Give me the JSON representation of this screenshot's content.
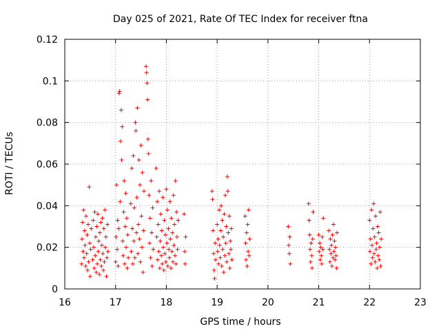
{
  "chart_data": {
    "type": "scatter",
    "title": "Day 025 of 2021, Rate Of TEC Index for receiver ftna",
    "xlabel": "GPS time / hours",
    "ylabel": "ROTI / TECUs",
    "xlim": [
      16,
      23
    ],
    "ylim": [
      0,
      0.12
    ],
    "xticks": [
      16,
      17,
      18,
      19,
      20,
      21,
      22,
      23
    ],
    "xtick_labels": [
      "16",
      "17",
      "18",
      "19",
      "20",
      "21",
      "22",
      "23"
    ],
    "yticks": [
      0,
      0.02,
      0.04,
      0.06,
      0.08,
      0.1,
      0.12
    ],
    "ytick_labels": [
      "0",
      "0.02",
      "0.04",
      "0.06",
      "0.08",
      "0.1",
      "0.12"
    ],
    "grid": true,
    "marker": "+",
    "marker_color": "#ff0000",
    "series": [
      {
        "name": "ROTI",
        "points": [
          [
            16.33,
            0.012
          ],
          [
            16.34,
            0.024
          ],
          [
            16.35,
            0.032
          ],
          [
            16.36,
            0.018
          ],
          [
            16.37,
            0.038
          ],
          [
            16.38,
            0.015
          ],
          [
            16.39,
            0.028
          ],
          [
            16.4,
            0.021
          ],
          [
            16.41,
            0.011
          ],
          [
            16.42,
            0.035
          ],
          [
            16.43,
            0.017
          ],
          [
            16.44,
            0.026
          ],
          [
            16.45,
            0.009
          ],
          [
            16.46,
            0.031
          ],
          [
            16.47,
            0.013
          ],
          [
            16.48,
            0.049
          ],
          [
            16.49,
            0.022
          ],
          [
            16.5,
            0.006
          ],
          [
            16.51,
            0.019
          ],
          [
            16.52,
            0.029
          ],
          [
            16.55,
            0.014
          ],
          [
            16.56,
            0.033
          ],
          [
            16.57,
            0.02
          ],
          [
            16.58,
            0.01
          ],
          [
            16.59,
            0.037
          ],
          [
            16.6,
            0.016
          ],
          [
            16.61,
            0.025
          ],
          [
            16.62,
            0.008
          ],
          [
            16.63,
            0.03
          ],
          [
            16.64,
            0.012
          ],
          [
            16.65,
            0.036
          ],
          [
            16.66,
            0.018
          ],
          [
            16.67,
            0.023
          ],
          [
            16.68,
            0.007
          ],
          [
            16.69,
            0.027
          ],
          [
            16.7,
            0.014
          ],
          [
            16.71,
            0.032
          ],
          [
            16.72,
            0.011
          ],
          [
            16.73,
            0.021
          ],
          [
            16.74,
            0.034
          ],
          [
            16.75,
            0.017
          ],
          [
            16.76,
            0.009
          ],
          [
            16.77,
            0.029
          ],
          [
            16.78,
            0.013
          ],
          [
            16.79,
            0.038
          ],
          [
            16.8,
            0.02
          ],
          [
            16.81,
            0.025
          ],
          [
            16.82,
            0.006
          ],
          [
            16.83,
            0.015
          ],
          [
            16.84,
            0.031
          ],
          [
            16.85,
            0.018
          ],
          [
            17.0,
            0.013
          ],
          [
            17.01,
            0.025
          ],
          [
            17.02,
            0.05
          ],
          [
            17.03,
            0.019
          ],
          [
            17.04,
            0.033
          ],
          [
            17.05,
            0.011
          ],
          [
            17.06,
            0.029
          ],
          [
            17.07,
            0.094
          ],
          [
            17.08,
            0.095
          ],
          [
            17.09,
            0.042
          ],
          [
            17.1,
            0.071
          ],
          [
            17.11,
            0.086
          ],
          [
            17.12,
            0.062
          ],
          [
            17.13,
            0.078
          ],
          [
            17.14,
            0.023
          ],
          [
            17.15,
            0.016
          ],
          [
            17.16,
            0.037
          ],
          [
            17.17,
            0.052
          ],
          [
            17.18,
            0.012
          ],
          [
            17.19,
            0.03
          ],
          [
            17.2,
            0.046
          ],
          [
            17.21,
            0.02
          ],
          [
            17.22,
            0.034
          ],
          [
            17.23,
            0.01
          ],
          [
            17.24,
            0.026
          ],
          [
            17.25,
            0.015
          ],
          [
            17.3,
            0.041
          ],
          [
            17.31,
            0.018
          ],
          [
            17.32,
            0.058
          ],
          [
            17.33,
            0.029
          ],
          [
            17.34,
            0.012
          ],
          [
            17.35,
            0.064
          ],
          [
            17.36,
            0.023
          ],
          [
            17.37,
            0.039
          ],
          [
            17.38,
            0.015
          ],
          [
            17.39,
            0.08
          ],
          [
            17.4,
            0.076
          ],
          [
            17.41,
            0.027
          ],
          [
            17.42,
            0.044
          ],
          [
            17.43,
            0.087
          ],
          [
            17.44,
            0.017
          ],
          [
            17.45,
            0.031
          ],
          [
            17.46,
            0.062
          ],
          [
            17.47,
            0.024
          ],
          [
            17.48,
            0.05
          ],
          [
            17.49,
            0.013
          ],
          [
            17.5,
            0.069
          ],
          [
            17.51,
            0.035
          ],
          [
            17.52,
            0.02
          ],
          [
            17.53,
            0.056
          ],
          [
            17.54,
            0.008
          ],
          [
            17.55,
            0.028
          ],
          [
            17.56,
            0.047
          ],
          [
            17.6,
            0.107
          ],
          [
            17.61,
            0.104
          ],
          [
            17.62,
            0.099
          ],
          [
            17.63,
            0.091
          ],
          [
            17.64,
            0.072
          ],
          [
            17.65,
            0.065
          ],
          [
            17.66,
            0.045
          ],
          [
            17.67,
            0.022
          ],
          [
            17.68,
            0.034
          ],
          [
            17.69,
            0.015
          ],
          [
            17.7,
            0.052
          ],
          [
            17.71,
            0.027
          ],
          [
            17.72,
            0.011
          ],
          [
            17.73,
            0.039
          ],
          [
            17.74,
            0.019
          ],
          [
            17.8,
            0.058
          ],
          [
            17.81,
            0.025
          ],
          [
            17.82,
            0.042
          ],
          [
            17.83,
            0.014
          ],
          [
            17.84,
            0.031
          ],
          [
            17.85,
            0.018
          ],
          [
            17.86,
            0.047
          ],
          [
            17.87,
            0.01
          ],
          [
            17.88,
            0.023
          ],
          [
            17.89,
            0.036
          ],
          [
            17.9,
            0.016
          ],
          [
            17.91,
            0.028
          ],
          [
            17.92,
            0.012
          ],
          [
            17.93,
            0.044
          ],
          [
            17.94,
            0.02
          ],
          [
            17.95,
            0.009
          ],
          [
            17.96,
            0.033
          ],
          [
            17.97,
            0.017
          ],
          [
            17.98,
            0.026
          ],
          [
            17.99,
            0.013
          ],
          [
            18.0,
            0.048
          ],
          [
            18.01,
            0.022
          ],
          [
            18.02,
            0.038
          ],
          [
            18.03,
            0.011
          ],
          [
            18.04,
            0.029
          ],
          [
            18.05,
            0.019
          ],
          [
            18.06,
            0.015
          ],
          [
            18.07,
            0.042
          ],
          [
            18.08,
            0.024
          ],
          [
            18.09,
            0.01
          ],
          [
            18.1,
            0.034
          ],
          [
            18.11,
            0.018
          ],
          [
            18.12,
            0.027
          ],
          [
            18.13,
            0.013
          ],
          [
            18.14,
            0.045
          ],
          [
            18.15,
            0.021
          ],
          [
            18.16,
            0.031
          ],
          [
            18.17,
            0.016
          ],
          [
            18.18,
            0.052
          ],
          [
            18.19,
            0.012
          ],
          [
            18.2,
            0.037
          ],
          [
            18.21,
            0.025
          ],
          [
            18.22,
            0.019
          ],
          [
            18.23,
            0.033
          ],
          [
            18.35,
            0.036
          ],
          [
            18.36,
            0.018
          ],
          [
            18.37,
            0.012
          ],
          [
            18.38,
            0.025
          ],
          [
            18.9,
            0.047
          ],
          [
            18.91,
            0.043
          ],
          [
            18.92,
            0.028
          ],
          [
            18.93,
            0.017
          ],
          [
            18.94,
            0.009
          ],
          [
            18.95,
            0.005
          ],
          [
            18.96,
            0.022
          ],
          [
            18.97,
            0.014
          ],
          [
            19.0,
            0.031
          ],
          [
            19.01,
            0.018
          ],
          [
            19.02,
            0.024
          ],
          [
            19.03,
            0.012
          ],
          [
            19.04,
            0.038
          ],
          [
            19.05,
            0.021
          ],
          [
            19.06,
            0.015
          ],
          [
            19.07,
            0.028
          ],
          [
            19.08,
            0.04
          ],
          [
            19.09,
            0.011
          ],
          [
            19.1,
            0.033
          ],
          [
            19.11,
            0.019
          ],
          [
            19.12,
            0.025
          ],
          [
            19.13,
            0.008
          ],
          [
            19.14,
            0.036
          ],
          [
            19.15,
            0.016
          ],
          [
            19.16,
            0.045
          ],
          [
            19.17,
            0.022
          ],
          [
            19.18,
            0.03
          ],
          [
            19.19,
            0.013
          ],
          [
            19.2,
            0.054
          ],
          [
            19.21,
            0.047
          ],
          [
            19.22,
            0.027
          ],
          [
            19.23,
            0.017
          ],
          [
            19.24,
            0.035
          ],
          [
            19.25,
            0.01
          ],
          [
            19.26,
            0.023
          ],
          [
            19.27,
            0.019
          ],
          [
            19.28,
            0.029
          ],
          [
            19.29,
            0.014
          ],
          [
            19.55,
            0.035
          ],
          [
            19.56,
            0.022
          ],
          [
            19.57,
            0.014
          ],
          [
            19.58,
            0.027
          ],
          [
            19.59,
            0.011
          ],
          [
            19.6,
            0.031
          ],
          [
            19.61,
            0.018
          ],
          [
            19.62,
            0.038
          ],
          [
            19.63,
            0.016
          ],
          [
            19.64,
            0.024
          ],
          [
            20.4,
            0.03
          ],
          [
            20.41,
            0.021
          ],
          [
            20.42,
            0.017
          ],
          [
            20.43,
            0.025
          ],
          [
            20.44,
            0.012
          ],
          [
            20.8,
            0.041
          ],
          [
            20.81,
            0.033
          ],
          [
            20.82,
            0.026
          ],
          [
            20.83,
            0.019
          ],
          [
            20.84,
            0.013
          ],
          [
            20.85,
            0.022
          ],
          [
            20.86,
            0.016
          ],
          [
            20.87,
            0.01
          ],
          [
            20.88,
            0.024
          ],
          [
            20.89,
            0.037
          ],
          [
            21.0,
            0.026
          ],
          [
            21.01,
            0.018
          ],
          [
            21.02,
            0.022
          ],
          [
            21.03,
            0.014
          ],
          [
            21.04,
            0.02
          ],
          [
            21.05,
            0.016
          ],
          [
            21.06,
            0.012
          ],
          [
            21.07,
            0.025
          ],
          [
            21.08,
            0.019
          ],
          [
            21.09,
            0.034
          ],
          [
            21.2,
            0.028
          ],
          [
            21.21,
            0.019
          ],
          [
            21.22,
            0.013
          ],
          [
            21.23,
            0.024
          ],
          [
            21.24,
            0.017
          ],
          [
            21.25,
            0.021
          ],
          [
            21.26,
            0.011
          ],
          [
            21.27,
            0.026
          ],
          [
            21.28,
            0.015
          ],
          [
            21.29,
            0.031
          ],
          [
            21.3,
            0.018
          ],
          [
            21.31,
            0.023
          ],
          [
            21.32,
            0.014
          ],
          [
            21.33,
            0.02
          ],
          [
            21.34,
            0.016
          ],
          [
            21.35,
            0.01
          ],
          [
            21.36,
            0.027
          ],
          [
            22.0,
            0.033
          ],
          [
            22.01,
            0.018
          ],
          [
            22.02,
            0.024
          ],
          [
            22.03,
            0.012
          ],
          [
            22.04,
            0.038
          ],
          [
            22.05,
            0.021
          ],
          [
            22.06,
            0.015
          ],
          [
            22.07,
            0.029
          ],
          [
            22.08,
            0.041
          ],
          [
            22.09,
            0.017
          ],
          [
            22.1,
            0.025
          ],
          [
            22.11,
            0.013
          ],
          [
            22.12,
            0.035
          ],
          [
            22.13,
            0.019
          ],
          [
            22.14,
            0.022
          ],
          [
            22.15,
            0.01
          ],
          [
            22.16,
            0.03
          ],
          [
            22.17,
            0.016
          ],
          [
            22.18,
            0.027
          ],
          [
            22.19,
            0.014
          ],
          [
            22.2,
            0.02
          ],
          [
            22.21,
            0.037
          ],
          [
            22.22,
            0.011
          ],
          [
            22.23,
            0.024
          ]
        ]
      }
    ]
  }
}
